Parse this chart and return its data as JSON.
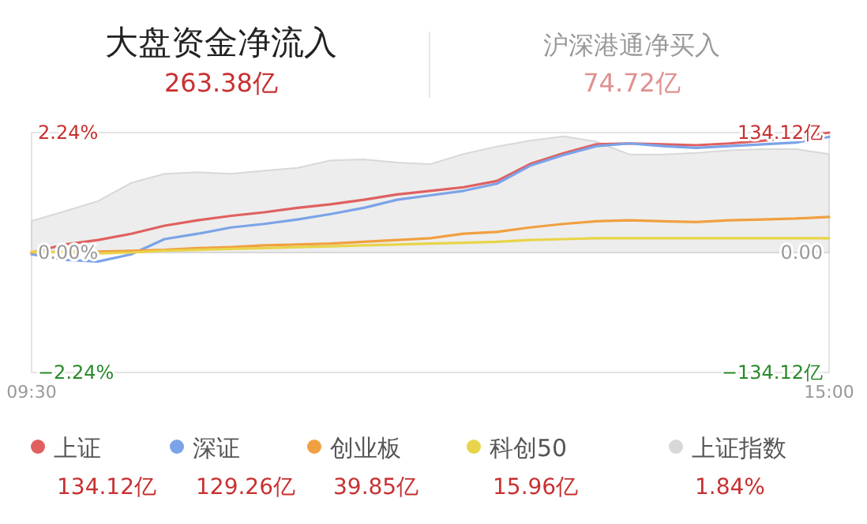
{
  "chart_data": {
    "type": "line",
    "title": "大盘资金净流入",
    "subtitle": "263.38亿",
    "annotations": [
      "沪深港通净买入",
      "74.72亿",
      "134.12亿",
      "129.26亿",
      "39.85亿",
      "15.96亿",
      "1.84%"
    ],
    "categories": [
      "09:30",
      null,
      null,
      null,
      null,
      null,
      null,
      null,
      null,
      null,
      null,
      null,
      null,
      null,
      null,
      null,
      null,
      null,
      null,
      null,
      null,
      null,
      null,
      null,
      "15:00"
    ],
    "ylim": [
      -2.24,
      2.24
    ],
    "yticks": [
      {
        "value": -2.24,
        "label": "−2.24%"
      },
      {
        "value": 0,
        "label": "0.00%"
      },
      {
        "value": 2.24,
        "label": "2.24%"
      }
    ],
    "y2lim": [
      -134.12,
      134.12
    ],
    "y2ticks": [
      {
        "value": -134.12,
        "label": "−134.12亿"
      },
      {
        "value": 0,
        "label": "0.00"
      },
      {
        "value": 134.12,
        "label": "134.12亿"
      }
    ],
    "legend": "bottom",
    "line_style": "solid",
    "series": [
      {
        "name": "上证",
        "color": "#e06060",
        "axis": "y2",
        "values": [
          0,
          9,
          14,
          21,
          30,
          36,
          41,
          45,
          50,
          54,
          59,
          65,
          69,
          73,
          80,
          99,
          111,
          121,
          122,
          121,
          120,
          122,
          125,
          129,
          134.12
        ]
      },
      {
        "name": "深证",
        "color": "#7ba3e8",
        "axis": "y2",
        "values": [
          -2,
          -8,
          -10,
          -2,
          15,
          21,
          28,
          32,
          37,
          43,
          50,
          59,
          64,
          69,
          77,
          97,
          109,
          119,
          122,
          119,
          117,
          119,
          121,
          123,
          129.26
        ]
      },
      {
        "name": "创业板",
        "color": "#f0a040",
        "axis": "y2",
        "values": [
          0,
          1,
          1,
          2,
          3,
          5,
          6,
          8,
          9,
          10,
          12,
          14,
          16,
          21,
          23,
          28,
          32,
          35,
          36,
          35,
          34,
          36,
          37,
          38,
          39.85
        ]
      },
      {
        "name": "科创50",
        "color": "#e8d44a",
        "axis": "y2",
        "values": [
          1,
          0,
          -1,
          0,
          2,
          3,
          4,
          5,
          6,
          7,
          8,
          9,
          10,
          11,
          12,
          14,
          15,
          16,
          16,
          16,
          16,
          16,
          16,
          16,
          15.96
        ]
      },
      {
        "name": "上证指数",
        "color": "#d8d8d8",
        "type": "area",
        "axis": "y",
        "values": [
          0.59,
          0.77,
          0.96,
          1.3,
          1.47,
          1.5,
          1.47,
          1.53,
          1.58,
          1.72,
          1.74,
          1.68,
          1.65,
          1.84,
          1.98,
          2.09,
          2.17,
          2.07,
          1.83,
          1.83,
          1.86,
          1.91,
          1.93,
          1.93,
          1.84
        ]
      }
    ]
  }
}
